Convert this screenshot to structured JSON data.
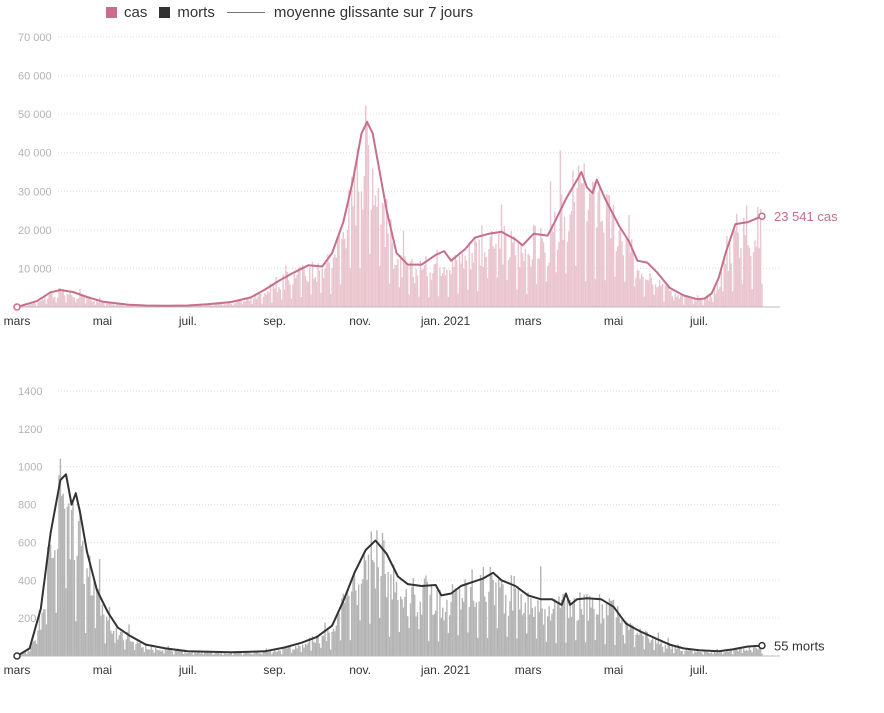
{
  "legend": {
    "cases_label": "cas",
    "deaths_label": "morts",
    "average_label": "moyenne glissante sur 7 jours",
    "cases_color": "#c76e8a",
    "deaths_color": "#333333",
    "average_color": "#777777"
  },
  "chart_data": [
    {
      "type": "bar",
      "name": "cas",
      "bar_color": "#eac5cf",
      "line_color": "#c76e8a",
      "x_range": [
        "2020-03-01",
        "2021-08-20"
      ],
      "ylim": [
        0,
        70000
      ],
      "yticks": [
        10000,
        20000,
        30000,
        40000,
        50000,
        60000,
        70000
      ],
      "ytick_labels": [
        "10 000",
        "20 000",
        "30 000",
        "40 000",
        "50 000",
        "60 000",
        "70 000"
      ],
      "xticks": [
        "2020-03-01",
        "2020-05-01",
        "2020-07-01",
        "2020-09-01",
        "2020-11-01",
        "2021-01-01",
        "2021-03-01",
        "2021-05-01",
        "2021-07-01"
      ],
      "xtick_labels": [
        "mars",
        "mai",
        "juil.",
        "sep.",
        "nov.",
        "jan. 2021",
        "mars",
        "mai",
        "juil."
      ],
      "grid": "horizontal dotted",
      "end_label": "23 541 cas",
      "end_value": 23541,
      "moving_average": [
        [
          "2020-03-01",
          0
        ],
        [
          "2020-03-15",
          1500
        ],
        [
          "2020-03-25",
          3800
        ],
        [
          "2020-04-01",
          4400
        ],
        [
          "2020-04-10",
          3900
        ],
        [
          "2020-04-20",
          2600
        ],
        [
          "2020-05-01",
          1400
        ],
        [
          "2020-05-10",
          1000
        ],
        [
          "2020-05-20",
          600
        ],
        [
          "2020-06-01",
          400
        ],
        [
          "2020-06-15",
          300
        ],
        [
          "2020-07-01",
          400
        ],
        [
          "2020-07-15",
          700
        ],
        [
          "2020-08-01",
          1300
        ],
        [
          "2020-08-15",
          2500
        ],
        [
          "2020-08-25",
          4500
        ],
        [
          "2020-09-05",
          7000
        ],
        [
          "2020-09-15",
          9000
        ],
        [
          "2020-09-25",
          10800
        ],
        [
          "2020-10-05",
          10500
        ],
        [
          "2020-10-12",
          14000
        ],
        [
          "2020-10-20",
          22000
        ],
        [
          "2020-10-27",
          33000
        ],
        [
          "2020-11-02",
          45000
        ],
        [
          "2020-11-06",
          48000
        ],
        [
          "2020-11-10",
          45000
        ],
        [
          "2020-11-15",
          35000
        ],
        [
          "2020-11-20",
          25000
        ],
        [
          "2020-11-27",
          14000
        ],
        [
          "2020-12-05",
          11000
        ],
        [
          "2020-12-15",
          11000
        ],
        [
          "2020-12-25",
          13500
        ],
        [
          "2020-12-31",
          14500
        ],
        [
          "2021-01-05",
          12000
        ],
        [
          "2021-01-15",
          15000
        ],
        [
          "2021-01-22",
          18000
        ],
        [
          "2021-02-01",
          19000
        ],
        [
          "2021-02-10",
          19500
        ],
        [
          "2021-02-20",
          17500
        ],
        [
          "2021-02-25",
          16000
        ],
        [
          "2021-03-05",
          19000
        ],
        [
          "2021-03-15",
          18500
        ],
        [
          "2021-03-20",
          22000
        ],
        [
          "2021-03-28",
          28000
        ],
        [
          "2021-04-05",
          33000
        ],
        [
          "2021-04-08",
          35000
        ],
        [
          "2021-04-12",
          31000
        ],
        [
          "2021-04-16",
          29500
        ],
        [
          "2021-04-19",
          33000
        ],
        [
          "2021-04-25",
          28000
        ],
        [
          "2021-05-05",
          21000
        ],
        [
          "2021-05-12",
          17000
        ],
        [
          "2021-05-18",
          12000
        ],
        [
          "2021-05-25",
          11500
        ],
        [
          "2021-06-01",
          9000
        ],
        [
          "2021-06-10",
          5000
        ],
        [
          "2021-06-20",
          3000
        ],
        [
          "2021-06-30",
          2000
        ],
        [
          "2021-07-05",
          2200
        ],
        [
          "2021-07-10",
          3500
        ],
        [
          "2021-07-15",
          7500
        ],
        [
          "2021-07-20",
          14000
        ],
        [
          "2021-07-27",
          21500
        ],
        [
          "2021-08-05",
          22000
        ],
        [
          "2021-08-15",
          23541
        ]
      ]
    },
    {
      "type": "bar",
      "name": "morts",
      "bar_color": "#b4b4b4",
      "line_color": "#333333",
      "x_range": [
        "2020-03-01",
        "2021-08-20"
      ],
      "ylim": [
        0,
        1400
      ],
      "yticks": [
        200,
        400,
        600,
        800,
        1000,
        1200,
        1400
      ],
      "ytick_labels": [
        "200",
        "400",
        "600",
        "800",
        "1000",
        "1200",
        "1400"
      ],
      "xticks": [
        "2020-03-01",
        "2020-05-01",
        "2020-07-01",
        "2020-09-01",
        "2020-11-01",
        "2021-01-01",
        "2021-03-01",
        "2021-05-01",
        "2021-07-01"
      ],
      "xtick_labels": [
        "mars",
        "mai",
        "juil.",
        "sep.",
        "nov.",
        "jan. 2021",
        "mars",
        "mai",
        "juil."
      ],
      "grid": "horizontal dotted",
      "end_label": "55 morts",
      "end_value": 55,
      "moving_average": [
        [
          "2020-03-01",
          0
        ],
        [
          "2020-03-10",
          40
        ],
        [
          "2020-03-18",
          250
        ],
        [
          "2020-03-25",
          650
        ],
        [
          "2020-04-01",
          930
        ],
        [
          "2020-04-05",
          960
        ],
        [
          "2020-04-09",
          800
        ],
        [
          "2020-04-12",
          860
        ],
        [
          "2020-04-15",
          760
        ],
        [
          "2020-04-20",
          550
        ],
        [
          "2020-04-27",
          350
        ],
        [
          "2020-05-05",
          230
        ],
        [
          "2020-05-12",
          150
        ],
        [
          "2020-05-20",
          110
        ],
        [
          "2020-06-01",
          60
        ],
        [
          "2020-06-15",
          40
        ],
        [
          "2020-07-01",
          25
        ],
        [
          "2020-08-01",
          20
        ],
        [
          "2020-08-25",
          25
        ],
        [
          "2020-09-08",
          45
        ],
        [
          "2020-09-20",
          70
        ],
        [
          "2020-10-01",
          100
        ],
        [
          "2020-10-12",
          160
        ],
        [
          "2020-10-20",
          290
        ],
        [
          "2020-10-28",
          440
        ],
        [
          "2020-11-05",
          560
        ],
        [
          "2020-11-12",
          610
        ],
        [
          "2020-11-20",
          540
        ],
        [
          "2020-11-28",
          420
        ],
        [
          "2020-12-05",
          380
        ],
        [
          "2020-12-15",
          370
        ],
        [
          "2020-12-25",
          375
        ],
        [
          "2020-12-29",
          320
        ],
        [
          "2021-01-05",
          330
        ],
        [
          "2021-01-12",
          370
        ],
        [
          "2021-01-20",
          390
        ],
        [
          "2021-01-28",
          410
        ],
        [
          "2021-02-04",
          440
        ],
        [
          "2021-02-10",
          400
        ],
        [
          "2021-02-20",
          370
        ],
        [
          "2021-03-01",
          320
        ],
        [
          "2021-03-10",
          300
        ],
        [
          "2021-03-18",
          300
        ],
        [
          "2021-03-25",
          270
        ],
        [
          "2021-03-28",
          330
        ],
        [
          "2021-03-31",
          270
        ],
        [
          "2021-04-05",
          300
        ],
        [
          "2021-04-12",
          305
        ],
        [
          "2021-04-22",
          300
        ],
        [
          "2021-05-01",
          260
        ],
        [
          "2021-05-10",
          170
        ],
        [
          "2021-05-20",
          130
        ],
        [
          "2021-06-01",
          90
        ],
        [
          "2021-06-10",
          60
        ],
        [
          "2021-06-20",
          40
        ],
        [
          "2021-07-01",
          30
        ],
        [
          "2021-07-15",
          25
        ],
        [
          "2021-07-25",
          35
        ],
        [
          "2021-08-05",
          50
        ],
        [
          "2021-08-15",
          55
        ]
      ]
    }
  ]
}
